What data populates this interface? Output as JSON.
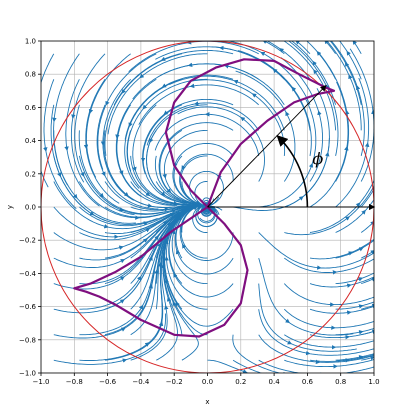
{
  "chart_data": {
    "type": "streamplot",
    "title": "",
    "xlabel": "x",
    "ylabel": "y",
    "xlim": [
      -1.0,
      1.0
    ],
    "ylim": [
      -1.0,
      1.0
    ],
    "xticks": [
      -1.0,
      -0.8,
      -0.6,
      -0.4,
      -0.2,
      0.0,
      0.2,
      0.4,
      0.6,
      0.8,
      1.0
    ],
    "yticks": [
      -1.0,
      -0.8,
      -0.6,
      -0.4,
      -0.2,
      0.0,
      0.2,
      0.4,
      0.6,
      0.8,
      1.0
    ],
    "xtick_labels": [
      "−1.0",
      "−0.8",
      "−0.6",
      "−0.4",
      "−0.2",
      "0.0",
      "0.2",
      "0.4",
      "0.6",
      "0.8",
      "1.0"
    ],
    "ytick_labels": [
      "−1.0",
      "−0.8",
      "−0.6",
      "−0.4",
      "−0.2",
      "0.0",
      "0.2",
      "0.4",
      "0.6",
      "0.8",
      "1.0"
    ],
    "grid": true,
    "unit_circle": {
      "center": [
        0,
        0
      ],
      "radius": 1.0,
      "color": "#d62728"
    },
    "stream_color": "#1f77b4",
    "lobe": {
      "color": "#7f0f7f",
      "points": [
        [
          0.0,
          0.0
        ],
        [
          0.08,
          0.21
        ],
        [
          0.2,
          0.38
        ],
        [
          0.36,
          0.52
        ],
        [
          0.52,
          0.63
        ],
        [
          0.66,
          0.68
        ],
        [
          0.76,
          0.7
        ],
        [
          0.71,
          0.72
        ],
        [
          0.55,
          0.8
        ],
        [
          0.4,
          0.88
        ],
        [
          0.22,
          0.89
        ],
        [
          0.05,
          0.84
        ],
        [
          -0.1,
          0.76
        ],
        [
          -0.2,
          0.63
        ],
        [
          -0.25,
          0.45
        ],
        [
          -0.2,
          0.25
        ],
        [
          -0.1,
          0.1
        ],
        [
          0.0,
          0.0
        ],
        [
          0.1,
          -0.1
        ],
        [
          0.2,
          -0.23
        ],
        [
          0.24,
          -0.38
        ],
        [
          0.2,
          -0.58
        ],
        [
          0.1,
          -0.71
        ],
        [
          -0.05,
          -0.78
        ],
        [
          -0.2,
          -0.77
        ],
        [
          -0.4,
          -0.68
        ],
        [
          -0.55,
          -0.59
        ],
        [
          -0.65,
          -0.54
        ],
        [
          -0.73,
          -0.51
        ],
        [
          -0.8,
          -0.49
        ],
        [
          -0.7,
          -0.46
        ],
        [
          -0.55,
          -0.39
        ],
        [
          -0.4,
          -0.3
        ],
        [
          -0.22,
          -0.15
        ],
        [
          0.0,
          0.0
        ]
      ]
    },
    "annotation": {
      "label": "ϕ",
      "label_pos": [
        0.63,
        0.26
      ],
      "arrows": [
        {
          "from": [
            0.0,
            0.0
          ],
          "to": [
            0.71,
            0.73
          ],
          "color": "#000000"
        },
        {
          "from": [
            0.0,
            0.0
          ],
          "to": [
            1.0,
            0.0
          ],
          "color": "#000000"
        }
      ],
      "arc": {
        "center": [
          0.0,
          0.0
        ],
        "radius": 0.6,
        "start_deg": 0,
        "end_deg": 45
      }
    }
  }
}
